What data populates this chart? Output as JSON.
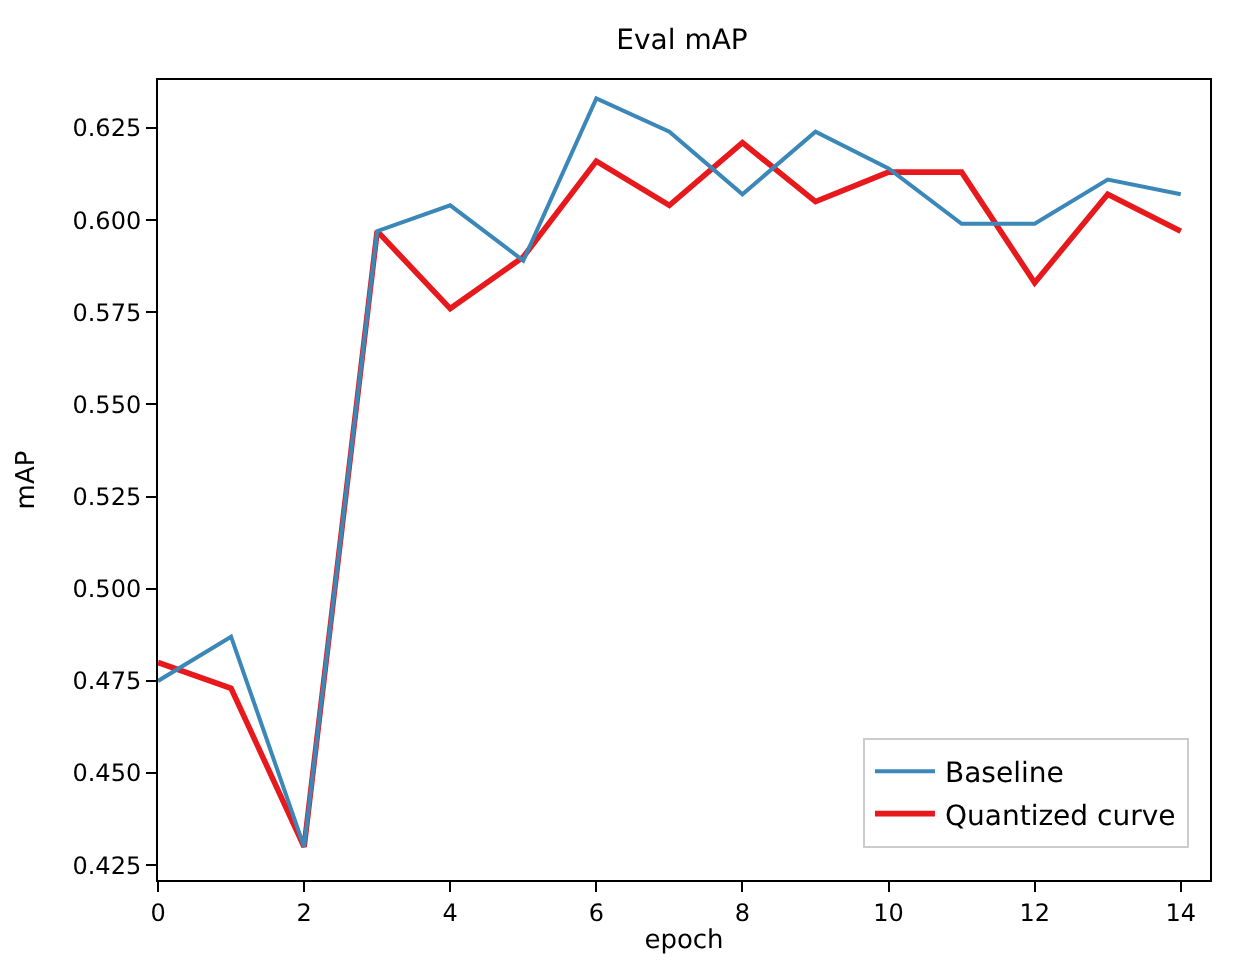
{
  "chart_data": {
    "type": "line",
    "title": "Eval mAP",
    "xlabel": "epoch",
    "ylabel": "mAP",
    "x": [
      0,
      1,
      2,
      3,
      4,
      5,
      6,
      7,
      8,
      9,
      10,
      11,
      12,
      13,
      14
    ],
    "series": [
      {
        "name": "Baseline",
        "color": "#3a87b8",
        "values": [
          0.475,
          0.487,
          0.43,
          0.597,
          0.604,
          0.589,
          0.633,
          0.624,
          0.607,
          0.624,
          0.614,
          0.599,
          0.599,
          0.611,
          0.607
        ]
      },
      {
        "name": "Quantized curve",
        "color": "#e8191c",
        "values": [
          0.48,
          0.473,
          0.43,
          0.597,
          0.576,
          0.59,
          0.616,
          0.604,
          0.621,
          0.605,
          0.613,
          0.613,
          0.583,
          0.607,
          0.597
        ]
      }
    ],
    "xlim": [
      0,
      14.4
    ],
    "xticks": [
      0,
      2,
      4,
      6,
      8,
      10,
      12,
      14
    ],
    "ylim": [
      0.421,
      0.638
    ],
    "yticks": [
      {
        "value": 0.425,
        "label": "0.425"
      },
      {
        "value": 0.45,
        "label": "0.450"
      },
      {
        "value": 0.475,
        "label": "0.475"
      },
      {
        "value": 0.5,
        "label": "0.500"
      },
      {
        "value": 0.525,
        "label": "0.525"
      },
      {
        "value": 0.55,
        "label": "0.550"
      },
      {
        "value": 0.575,
        "label": "0.575"
      },
      {
        "value": 0.6,
        "label": "0.600"
      },
      {
        "value": 0.625,
        "label": "0.625"
      }
    ],
    "legend": "bottom right",
    "marker": "none",
    "line_style": "solid"
  }
}
